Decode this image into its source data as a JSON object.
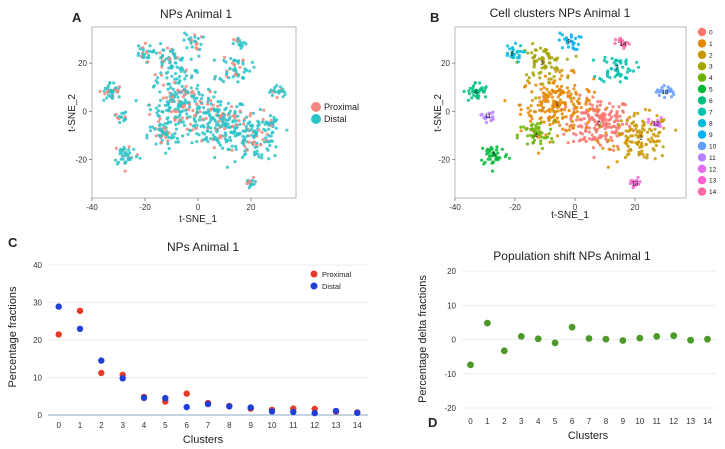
{
  "colors": {
    "proximal": "#f4877d",
    "distal": "#2ac3c8",
    "proximal_dot": "#e53a26",
    "distal_dot": "#1f3fd6",
    "delta": "#4c9a2a",
    "cluster_palette": [
      "#f8766d",
      "#e58700",
      "#c99800",
      "#a3a500",
      "#6bb100",
      "#00ba38",
      "#00bf7d",
      "#00c0af",
      "#00bcd8",
      "#00b0f6",
      "#619cff",
      "#b983ff",
      "#e76bf3",
      "#fd61d1",
      "#ff67a4"
    ]
  },
  "chart_data": [
    {
      "panel": "A",
      "type": "scatter",
      "title": "NPs Animal 1",
      "xlabel": "t-SNE_1",
      "ylabel": "t-SNE_2",
      "xticks": [
        -40,
        -20,
        0,
        20
      ],
      "yticks": [
        -20,
        0,
        20
      ],
      "xlim": [
        -40,
        37
      ],
      "ylim": [
        -36,
        35
      ],
      "legend": [
        "Proximal",
        "Distal"
      ],
      "legend_position": "right"
    },
    {
      "panel": "B",
      "type": "scatter",
      "title": "Cell clusters NPs Animal 1",
      "xlabel": "t-SNE_1",
      "ylabel": "t-SNE_2",
      "xticks": [
        -40,
        -20,
        0,
        20
      ],
      "yticks": [
        -20,
        0,
        20
      ],
      "xlim": [
        -40,
        37
      ],
      "ylim": [
        -36,
        35
      ],
      "legend": [
        "0",
        "1",
        "2",
        "3",
        "4",
        "5",
        "6",
        "7",
        "8",
        "9",
        "10",
        "11",
        "12",
        "13",
        "14"
      ],
      "legend_position": "right",
      "cluster_labels": [
        {
          "label": "0",
          "x": 8,
          "y": -5
        },
        {
          "label": "1",
          "x": -6,
          "y": 3
        },
        {
          "label": "2",
          "x": 22,
          "y": -11
        },
        {
          "label": "3",
          "x": -11,
          "y": 20
        },
        {
          "label": "4",
          "x": -13,
          "y": -10
        },
        {
          "label": "5",
          "x": -27,
          "y": -18
        },
        {
          "label": "6",
          "x": -33,
          "y": 8
        },
        {
          "label": "7",
          "x": 14,
          "y": 18
        },
        {
          "label": "8",
          "x": -21,
          "y": 24
        },
        {
          "label": "9",
          "x": -2,
          "y": 29
        },
        {
          "label": "10",
          "x": 30,
          "y": 8
        },
        {
          "label": "11",
          "x": -29,
          "y": -2
        },
        {
          "label": "12",
          "x": 27,
          "y": -5
        },
        {
          "label": "13",
          "x": 20,
          "y": -30
        },
        {
          "label": "14",
          "x": 16,
          "y": 28
        }
      ]
    },
    {
      "panel": "C",
      "type": "scatter",
      "title": "NPs Animal 1",
      "xlabel": "Clusters",
      "ylabel": "Percentage fractions",
      "categories": [
        "0",
        "1",
        "2",
        "3",
        "4",
        "5",
        "6",
        "7",
        "8",
        "9",
        "10",
        "11",
        "12",
        "13",
        "14"
      ],
      "ylim": [
        0,
        40
      ],
      "yticks": [
        0,
        10,
        20,
        30,
        40
      ],
      "series": [
        {
          "name": "Proximal",
          "values": [
            21.5,
            27.8,
            11.2,
            10.7,
            4.8,
            3.6,
            5.7,
            3.2,
            2.4,
            1.7,
            1.4,
            1.7,
            1.6,
            0.9,
            0.7
          ]
        },
        {
          "name": "Distal",
          "values": [
            28.9,
            23.0,
            14.5,
            9.8,
            4.6,
            4.5,
            2.1,
            2.9,
            2.3,
            2.0,
            1.0,
            0.8,
            0.5,
            1.1,
            0.6
          ]
        }
      ],
      "legend_position": "top-right"
    },
    {
      "panel": "D",
      "type": "scatter",
      "title": "Population shift NPs Animal 1",
      "xlabel": "Clusters",
      "ylabel": "Percentage delta fractions",
      "categories": [
        "0",
        "1",
        "2",
        "3",
        "4",
        "5",
        "6",
        "7",
        "8",
        "9",
        "10",
        "11",
        "12",
        "13",
        "14"
      ],
      "ylim": [
        -20,
        20
      ],
      "yticks": [
        -20,
        -10,
        0,
        10,
        20
      ],
      "series": [
        {
          "name": "Delta",
          "values": [
            -7.4,
            4.8,
            -3.3,
            0.9,
            0.2,
            -1.0,
            3.6,
            0.3,
            0.1,
            -0.3,
            0.4,
            0.9,
            1.1,
            -0.2,
            0.1
          ]
        }
      ]
    }
  ]
}
